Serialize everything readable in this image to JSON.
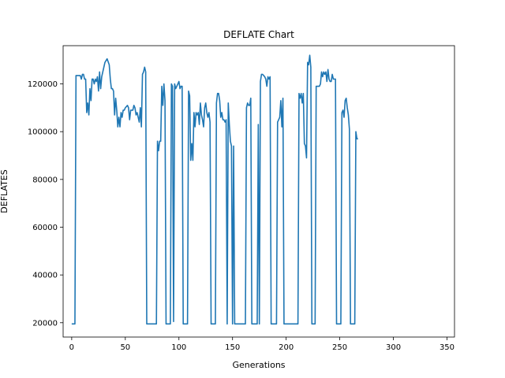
{
  "chart_data": {
    "type": "line",
    "title": "DEFLATE Chart",
    "xlabel": "Generations",
    "ylabel": "DEFLATES",
    "xlim": [
      -8,
      357
    ],
    "ylim": [
      14000,
      136000
    ],
    "xticks": [
      0,
      50,
      100,
      150,
      200,
      250,
      300,
      350
    ],
    "yticks": [
      20000,
      40000,
      60000,
      80000,
      100000,
      120000
    ],
    "grid": false,
    "line_color": "#1f77b4",
    "series": [
      {
        "points": [
          [
            0,
            19500
          ],
          [
            3,
            19500
          ],
          [
            4,
            123500
          ],
          [
            6,
            123500
          ],
          [
            8,
            123500
          ],
          [
            9,
            122000
          ],
          [
            10,
            124000
          ],
          [
            11,
            124000
          ],
          [
            12,
            122000
          ],
          [
            13,
            122000
          ],
          [
            14,
            108000
          ],
          [
            15,
            112000
          ],
          [
            16,
            107000
          ],
          [
            17,
            118000
          ],
          [
            18,
            113000
          ],
          [
            19,
            122000
          ],
          [
            20,
            122000
          ],
          [
            21,
            120000
          ],
          [
            22,
            122000
          ],
          [
            23,
            121000
          ],
          [
            24,
            123000
          ],
          [
            25,
            117000
          ],
          [
            26,
            125000
          ],
          [
            27,
            118000
          ],
          [
            28,
            123000
          ],
          [
            29,
            125000
          ],
          [
            31,
            129000
          ],
          [
            33,
            130500
          ],
          [
            35,
            128000
          ],
          [
            36,
            122000
          ],
          [
            37,
            118000
          ],
          [
            38,
            118000
          ],
          [
            39,
            117000
          ],
          [
            40,
            107000
          ],
          [
            41,
            114000
          ],
          [
            42,
            109000
          ],
          [
            43,
            102000
          ],
          [
            44,
            106000
          ],
          [
            45,
            102000
          ],
          [
            46,
            108000
          ],
          [
            47,
            106000
          ],
          [
            48,
            109000
          ],
          [
            49,
            109000
          ],
          [
            50,
            110000
          ],
          [
            52,
            111000
          ],
          [
            53,
            110000
          ],
          [
            54,
            105000
          ],
          [
            55,
            109000
          ],
          [
            57,
            109000
          ],
          [
            58,
            111000
          ],
          [
            59,
            110000
          ],
          [
            60,
            107000
          ],
          [
            61,
            108000
          ],
          [
            62,
            106000
          ],
          [
            63,
            104000
          ],
          [
            64,
            110000
          ],
          [
            65,
            102000
          ],
          [
            66,
            124000
          ],
          [
            67,
            125000
          ],
          [
            68,
            127000
          ],
          [
            69,
            125000
          ],
          [
            70,
            19500
          ],
          [
            79,
            19500
          ],
          [
            80,
            96000
          ],
          [
            81,
            92000
          ],
          [
            82,
            96000
          ],
          [
            83,
            96000
          ],
          [
            84,
            119000
          ],
          [
            85,
            111000
          ],
          [
            86,
            120000
          ],
          [
            87,
            113000
          ],
          [
            88,
            19500
          ],
          [
            92,
            19500
          ],
          [
            93,
            120000
          ],
          [
            94,
            119000
          ],
          [
            95,
            20500
          ],
          [
            96,
            120000
          ],
          [
            97,
            118000
          ],
          [
            98,
            119000
          ],
          [
            99,
            120000
          ],
          [
            100,
            121000
          ],
          [
            101,
            118000
          ],
          [
            102,
            119000
          ],
          [
            103,
            119000
          ],
          [
            104,
            19500
          ],
          [
            108,
            19500
          ],
          [
            109,
            117000
          ],
          [
            110,
            115000
          ],
          [
            111,
            88000
          ],
          [
            112,
            95000
          ],
          [
            113,
            88000
          ],
          [
            114,
            108000
          ],
          [
            115,
            102000
          ],
          [
            116,
            108000
          ],
          [
            117,
            107000
          ],
          [
            118,
            108000
          ],
          [
            119,
            103000
          ],
          [
            120,
            112000
          ],
          [
            121,
            107000
          ],
          [
            122,
            105000
          ],
          [
            123,
            102000
          ],
          [
            124,
            110000
          ],
          [
            125,
            112000
          ],
          [
            126,
            108000
          ],
          [
            127,
            106000
          ],
          [
            128,
            108000
          ],
          [
            129,
            104000
          ],
          [
            130,
            19500
          ],
          [
            134,
            19500
          ],
          [
            135,
            112000
          ],
          [
            136,
            116000
          ],
          [
            137,
            116000
          ],
          [
            138,
            113000
          ],
          [
            139,
            106000
          ],
          [
            140,
            108000
          ],
          [
            141,
            105000
          ],
          [
            142,
            105000
          ],
          [
            143,
            104000
          ],
          [
            144,
            105000
          ],
          [
            145,
            19500
          ],
          [
            146,
            112000
          ],
          [
            147,
            103000
          ],
          [
            148,
            96000
          ],
          [
            149,
            94000
          ],
          [
            150,
            19500
          ],
          [
            151,
            94000
          ],
          [
            152,
            19500
          ],
          [
            162,
            19500
          ],
          [
            163,
            110000
          ],
          [
            164,
            112000
          ],
          [
            165,
            111000
          ],
          [
            166,
            111000
          ],
          [
            167,
            114000
          ],
          [
            168,
            19500
          ],
          [
            173,
            19500
          ],
          [
            174,
            103000
          ],
          [
            175,
            19500
          ],
          [
            176,
            121000
          ],
          [
            177,
            124000
          ],
          [
            178,
            124000
          ],
          [
            180,
            123000
          ],
          [
            181,
            122000
          ],
          [
            182,
            119000
          ],
          [
            183,
            123000
          ],
          [
            184,
            122000
          ],
          [
            185,
            123000
          ],
          [
            186,
            19500
          ],
          [
            191,
            19500
          ],
          [
            192,
            104000
          ],
          [
            193,
            105000
          ],
          [
            194,
            106000
          ],
          [
            195,
            113000
          ],
          [
            196,
            102000
          ],
          [
            197,
            114000
          ],
          [
            198,
            19500
          ],
          [
            203,
            19500
          ],
          [
            205,
            19500
          ],
          [
            211,
            19500
          ],
          [
            212,
            116000
          ],
          [
            213,
            114000
          ],
          [
            214,
            116000
          ],
          [
            215,
            112000
          ],
          [
            216,
            116000
          ],
          [
            217,
            95000
          ],
          [
            218,
            94000
          ],
          [
            219,
            89000
          ],
          [
            220,
            129000
          ],
          [
            221,
            128000
          ],
          [
            222,
            132000
          ],
          [
            223,
            127000
          ],
          [
            224,
            19500
          ],
          [
            227,
            19500
          ],
          [
            228,
            119000
          ],
          [
            231,
            119000
          ],
          [
            232,
            120000
          ],
          [
            233,
            125000
          ],
          [
            234,
            123000
          ],
          [
            235,
            125000
          ],
          [
            236,
            124000
          ],
          [
            237,
            125000
          ],
          [
            238,
            121000
          ],
          [
            239,
            126000
          ],
          [
            240,
            122000
          ],
          [
            241,
            121000
          ],
          [
            242,
            121000
          ],
          [
            243,
            124000
          ],
          [
            244,
            122000
          ],
          [
            245,
            122000
          ],
          [
            246,
            122000
          ],
          [
            247,
            19500
          ],
          [
            251,
            19500
          ],
          [
            252,
            108000
          ],
          [
            253,
            109000
          ],
          [
            254,
            106000
          ],
          [
            255,
            113000
          ],
          [
            256,
            114000
          ],
          [
            257,
            110000
          ],
          [
            258,
            107000
          ],
          [
            259,
            101000
          ],
          [
            260,
            19500
          ],
          [
            264,
            19500
          ],
          [
            265,
            100000
          ],
          [
            266,
            97000
          ],
          [
            267,
            97000
          ]
        ]
      }
    ]
  }
}
